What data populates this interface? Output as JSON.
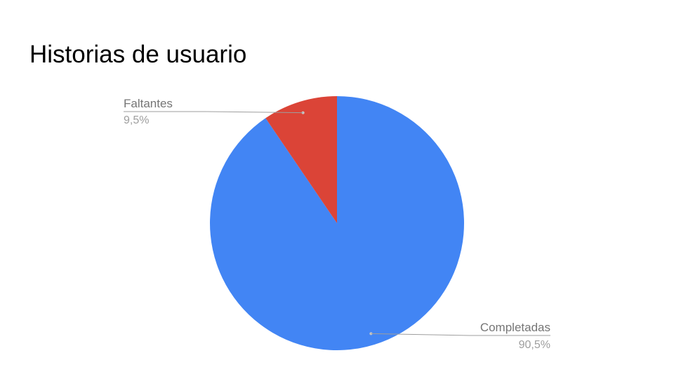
{
  "slide": {
    "title": "Historias de usuario"
  },
  "chart_data": {
    "type": "pie",
    "title": "",
    "slices": [
      {
        "label": "Completadas",
        "value": 90.5,
        "value_label": "90,5%",
        "color": "#4285f4"
      },
      {
        "label": "Faltantes",
        "value": 9.5,
        "value_label": "9,5%",
        "color": "#db4437"
      }
    ],
    "start_angle": "12 o'clock",
    "direction": "clockwise",
    "legend": "none",
    "label_placement": "outside with leader lines"
  }
}
